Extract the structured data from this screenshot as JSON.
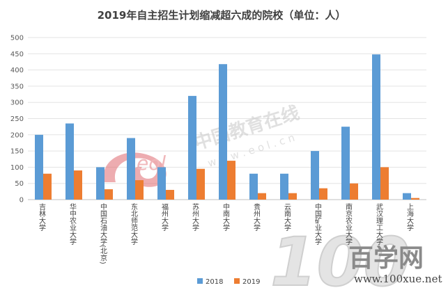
{
  "chart_data": {
    "type": "bar",
    "title": "2019年自主招生计划缩减超六成的院校（单位：人）",
    "categories": [
      "吉林大学",
      "华中农业大学",
      "中国石油大学(北京)",
      "东北师范大学",
      "福州大学",
      "苏州大学",
      "中南大学",
      "贵州大学",
      "云南大学",
      "中国矿业大学",
      "南京农业大学",
      "武汉理工大学",
      "上海大学"
    ],
    "series": [
      {
        "name": "2018",
        "color": "#5b9bd5",
        "values": [
          200,
          235,
          100,
          190,
          100,
          320,
          418,
          80,
          80,
          150,
          225,
          448,
          20
        ]
      },
      {
        "name": "2019",
        "color": "#ed7d31",
        "values": [
          80,
          90,
          32,
          60,
          30,
          95,
          120,
          20,
          20,
          35,
          50,
          100,
          5
        ]
      }
    ],
    "ylim": [
      0,
      500
    ],
    "yticks": [
      0,
      50,
      100,
      150,
      200,
      250,
      300,
      350,
      400,
      450,
      500
    ],
    "grid": true,
    "legend": "bottom"
  },
  "watermarks": {
    "eol_logo": "eol",
    "eol_text": "中国教育在线",
    "eol_url": "w w w . e o l . c n",
    "xue_number": "100",
    "xue_name": "百学网",
    "xue_url": "www.100xue.net"
  }
}
